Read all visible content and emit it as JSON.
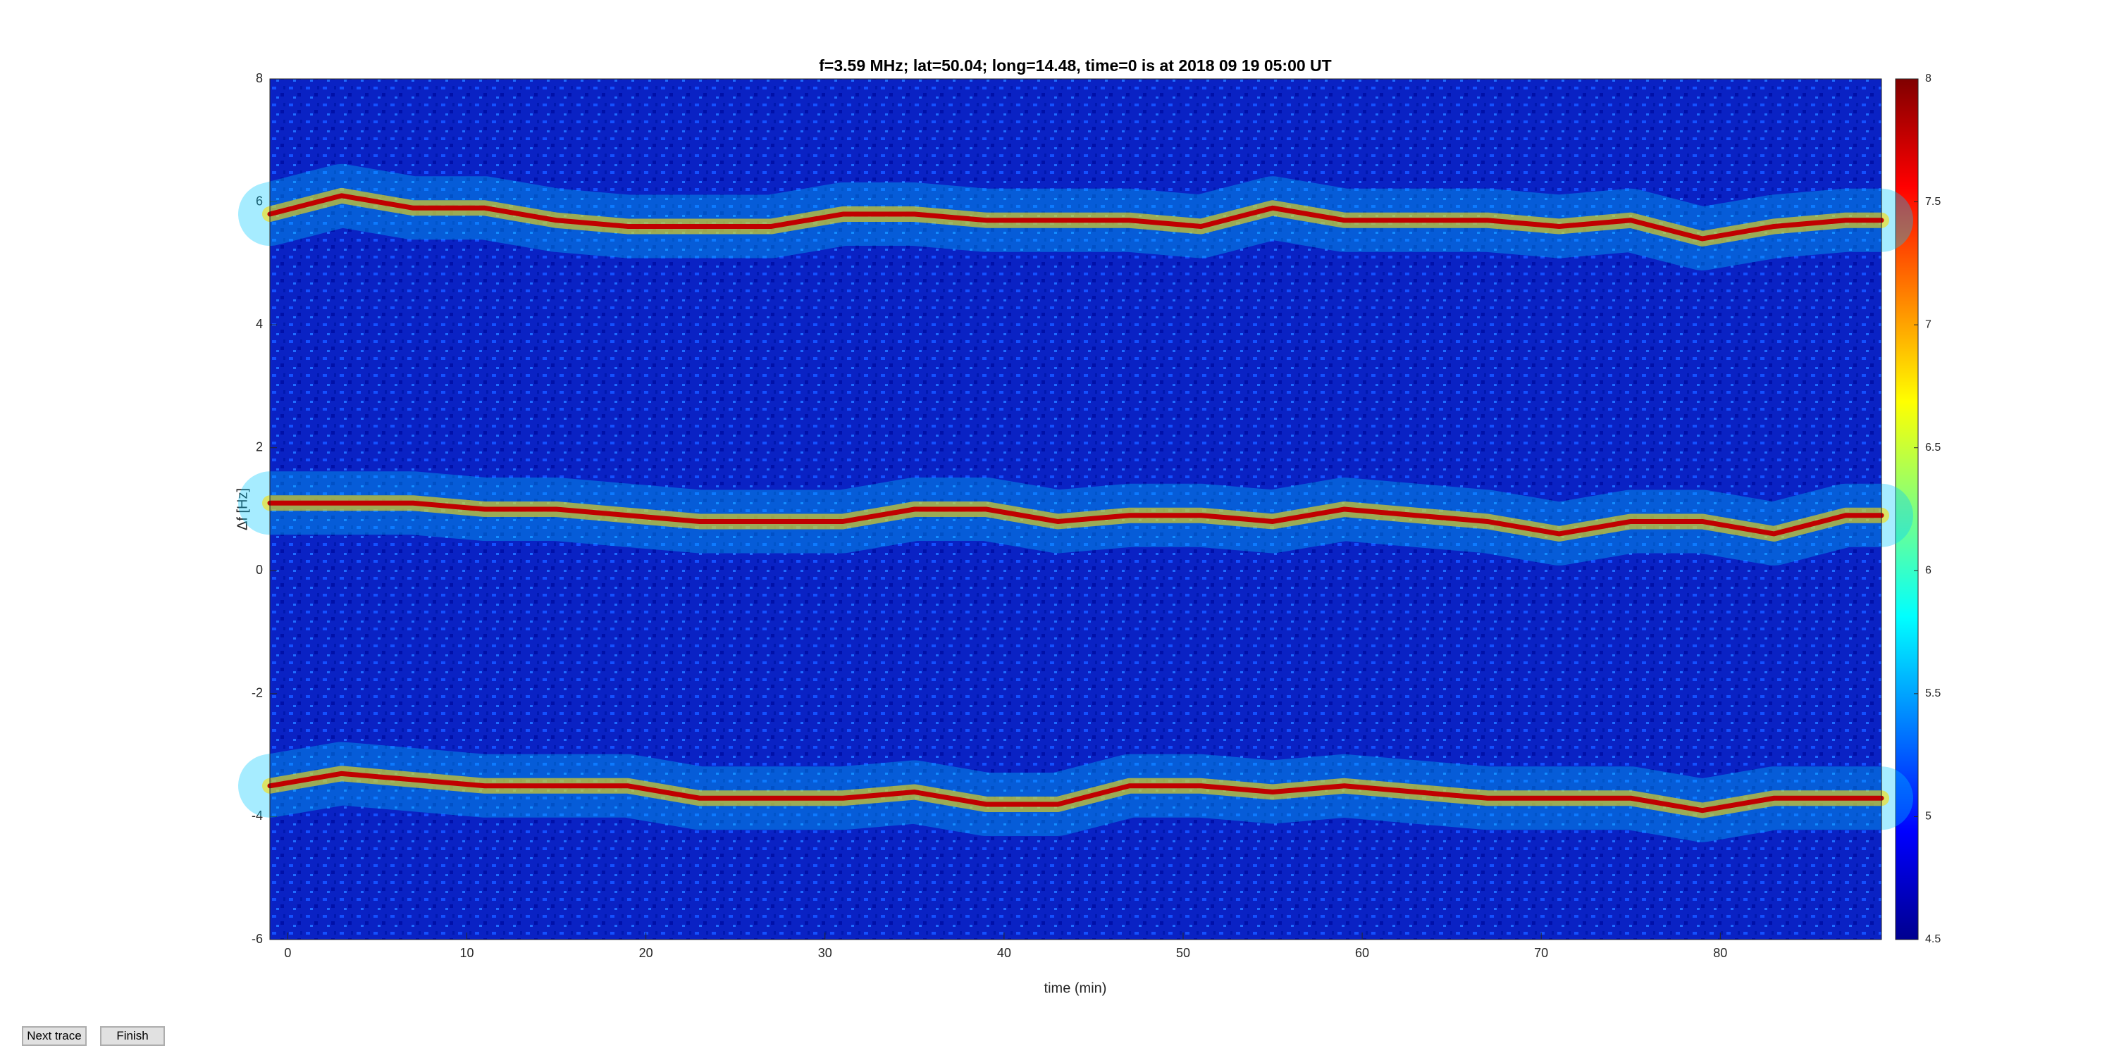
{
  "chart_data": {
    "type": "spectrogram",
    "title": "f=3.59 MHz;  lat=50.04; long=14.48, time=0 is at 2018 09 19 05:00 UT",
    "x_label": "time (min)",
    "y_label": "Δf [Hz]",
    "xlim": [
      -1,
      89
    ],
    "xticks": [
      0,
      10,
      20,
      30,
      40,
      50,
      60,
      70,
      80
    ],
    "ylim": [
      -6,
      8
    ],
    "yticks": [
      -6,
      -4,
      -2,
      0,
      2,
      4,
      6,
      8
    ],
    "clim": [
      4.5,
      8
    ],
    "cticks": [
      4.5,
      5,
      5.5,
      6,
      6.5,
      7,
      7.5,
      8
    ],
    "colormap": "jet",
    "x": [
      -1,
      3,
      7,
      11,
      15,
      19,
      23,
      27,
      31,
      35,
      39,
      43,
      47,
      51,
      55,
      59,
      63,
      67,
      71,
      75,
      79,
      83,
      87,
      89
    ],
    "series": [
      {
        "color": "#c00000",
        "values": [
          5.8,
          6.1,
          5.9,
          5.9,
          5.7,
          5.6,
          5.6,
          5.6,
          5.8,
          5.8,
          5.7,
          5.7,
          5.7,
          5.6,
          5.9,
          5.7,
          5.7,
          5.7,
          5.6,
          5.7,
          5.4,
          5.6,
          5.7,
          5.7
        ]
      },
      {
        "color": "#c00000",
        "values": [
          1.1,
          1.1,
          1.1,
          1.0,
          1.0,
          0.9,
          0.8,
          0.8,
          0.8,
          1.0,
          1.0,
          0.8,
          0.9,
          0.9,
          0.8,
          1.0,
          0.9,
          0.8,
          0.6,
          0.8,
          0.8,
          0.6,
          0.9,
          0.9
        ]
      },
      {
        "color": "#c00000",
        "values": [
          -3.5,
          -3.3,
          -3.4,
          -3.5,
          -3.5,
          -3.5,
          -3.7,
          -3.7,
          -3.7,
          -3.6,
          -3.8,
          -3.8,
          -3.5,
          -3.5,
          -3.6,
          -3.5,
          -3.6,
          -3.7,
          -3.7,
          -3.7,
          -3.9,
          -3.7,
          -3.7,
          -3.7
        ]
      }
    ]
  },
  "buttons": [
    "Next trace",
    "Finish"
  ]
}
